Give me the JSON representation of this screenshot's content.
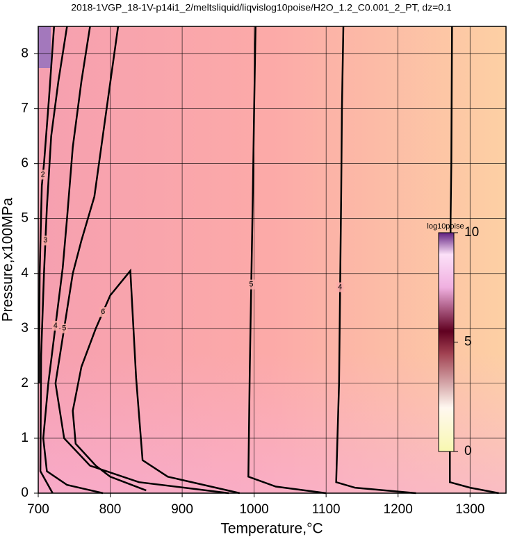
{
  "chart_data": {
    "type": "contour",
    "title": "2018-1VGP_18-1V-p14i1_2/meltsliquid/liqvislog10poise/H2O_1.2_C0.001_2_PT, dz=0.1",
    "x_label": "Temperature,°C",
    "y_label": "Pressure,x100MPa",
    "xlim": [
      700,
      1350
    ],
    "ylim": [
      0,
      8.5
    ],
    "xticks": [
      700,
      800,
      900,
      1000,
      1100,
      1200,
      1300
    ],
    "yticks": [
      0,
      1,
      2,
      3,
      4,
      5,
      6,
      7,
      8
    ],
    "grid": true,
    "color": "#000000",
    "contours": [
      {
        "level": 3,
        "x": [
          1275,
          1274,
          1273,
          1272,
          1272,
          1300,
          1340
        ],
        "y": [
          8.5,
          6,
          5,
          1,
          0.2,
          0.1,
          0
        ]
      },
      {
        "level": 4,
        "x": [
          1124,
          1122,
          1121,
          1118,
          1114,
          1140,
          1225
        ],
        "y": [
          8.5,
          7,
          5.5,
          2,
          0.2,
          0.1,
          0
        ]
      },
      {
        "level": 5,
        "x": [
          1002,
          1000,
          998,
          994,
          992,
          1030,
          1100
        ],
        "y": [
          8.5,
          7,
          5.3,
          2.3,
          0.3,
          0.12,
          0
        ]
      },
      {
        "level": 5,
        "x": [
          811,
          795,
          778,
          760,
          748,
          724,
          736,
          772,
          840,
          965
        ],
        "y": [
          8.5,
          7,
          5.4,
          4.6,
          4,
          2,
          1,
          0.5,
          0.2,
          0
        ]
      },
      {
        "level": 6,
        "x": [
          980,
          880,
          845,
          836,
          828,
          800,
          780,
          760,
          748,
          752,
          780,
          800,
          850
        ],
        "y": [
          0,
          0.3,
          0.6,
          2.1,
          4.05,
          3.6,
          3,
          2.3,
          1.5,
          0.9,
          0.5,
          0.3,
          0.05
        ]
      },
      {
        "level": 4,
        "x": [
          772,
          760,
          748,
          740,
          734,
          714,
          707,
          712,
          740,
          790
        ],
        "y": [
          8.5,
          7.5,
          6.3,
          5,
          4.1,
          2,
          1,
          0.4,
          0.15,
          0
        ]
      },
      {
        "level": 3,
        "x": [
          740,
          728,
          718,
          712,
          708,
          704,
          703,
          720
        ],
        "y": [
          8.5,
          7.5,
          6.5,
          5.2,
          4,
          2.5,
          0.4,
          0
        ]
      },
      {
        "level": 2,
        "x": [
          722,
          715,
          708,
          705,
          702,
          701
        ],
        "y": [
          8.5,
          7.2,
          6,
          5.6,
          4,
          2
        ]
      }
    ],
    "colorbar": {
      "title": "log10poise",
      "lim": [
        0,
        10
      ],
      "ticks": [
        0,
        5,
        10
      ]
    }
  }
}
